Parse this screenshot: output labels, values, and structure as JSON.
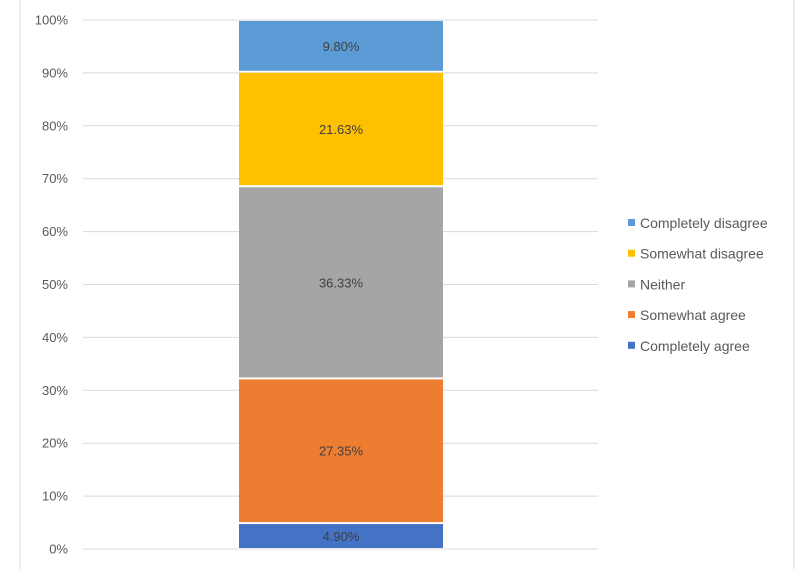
{
  "chart_data": {
    "type": "bar",
    "stacked": true,
    "categories": [
      ""
    ],
    "ylim": [
      0,
      100
    ],
    "y_ticks": [
      "0%",
      "10%",
      "20%",
      "30%",
      "40%",
      "50%",
      "60%",
      "70%",
      "80%",
      "90%",
      "100%"
    ],
    "grid": true,
    "legend_position": "right",
    "series": [
      {
        "name": "Completely agree",
        "values": [
          4.9
        ],
        "label": "4.90%",
        "color": "#4472C4"
      },
      {
        "name": "Somewhat agree",
        "values": [
          27.35
        ],
        "label": "27.35%",
        "color": "#ED7D31"
      },
      {
        "name": "Neither",
        "values": [
          36.33
        ],
        "label": "36.33%",
        "color": "#A5A5A5"
      },
      {
        "name": "Somewhat disagree",
        "values": [
          21.63
        ],
        "label": "21.63%",
        "color": "#FFC000"
      },
      {
        "name": "Completely disagree",
        "values": [
          9.8
        ],
        "label": "9.80%",
        "color": "#5B9BD5"
      }
    ]
  }
}
